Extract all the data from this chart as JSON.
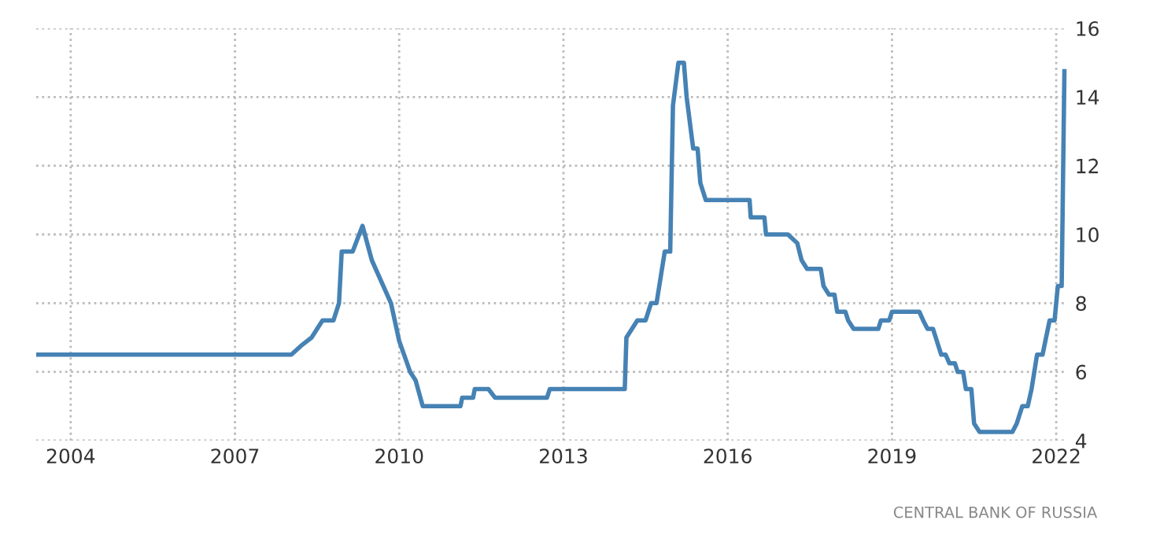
{
  "chart_data": {
    "type": "line",
    "annotations": [
      "CENTRAL BANK OF RUSSIA"
    ],
    "x": [
      2003.37,
      2008.03,
      2008.2,
      2008.4,
      2008.6,
      2008.8,
      2008.9,
      2008.95,
      2009.15,
      2009.33,
      2009.5,
      2009.85,
      2010.0,
      2010.2,
      2010.3,
      2010.43,
      2011.12,
      2011.15,
      2011.35,
      2011.38,
      2011.63,
      2011.75,
      2012.7,
      2012.75,
      2014.12,
      2014.15,
      2014.35,
      2014.5,
      2014.6,
      2014.7,
      2014.85,
      2014.95,
      2015.0,
      2015.1,
      2015.2,
      2015.25,
      2015.37,
      2015.45,
      2015.5,
      2015.6,
      2016.4,
      2016.42,
      2016.67,
      2016.7,
      2017.1,
      2017.27,
      2017.35,
      2017.45,
      2017.7,
      2017.75,
      2017.85,
      2017.95,
      2018.0,
      2018.15,
      2018.2,
      2018.3,
      2018.75,
      2018.8,
      2018.95,
      2019.0,
      2019.5,
      2019.57,
      2019.65,
      2019.75,
      2019.8,
      2019.9,
      2019.98,
      2020.05,
      2020.15,
      2020.2,
      2020.3,
      2020.35,
      2020.45,
      2020.5,
      2020.6,
      2021.2,
      2021.28,
      2021.38,
      2021.48,
      2021.55,
      2021.65,
      2021.75,
      2021.88,
      2021.97,
      2022.03,
      2022.1,
      2022.15
    ],
    "values": [
      6.5,
      6.5,
      6.75,
      7.0,
      7.5,
      7.5,
      8.0,
      9.5,
      9.5,
      10.25,
      9.25,
      8.0,
      6.9,
      6.0,
      5.75,
      5.0,
      5.0,
      5.25,
      5.25,
      5.5,
      5.5,
      5.25,
      5.25,
      5.5,
      5.5,
      7.0,
      7.5,
      7.5,
      8.0,
      8.0,
      9.5,
      9.5,
      13.75,
      15.0,
      15.0,
      14.0,
      12.5,
      12.5,
      11.5,
      11.0,
      11.0,
      10.5,
      10.5,
      10.0,
      10.0,
      9.75,
      9.25,
      9.0,
      9.0,
      8.5,
      8.25,
      8.25,
      7.75,
      7.75,
      7.5,
      7.25,
      7.25,
      7.5,
      7.5,
      7.75,
      7.75,
      7.5,
      7.25,
      7.25,
      7.0,
      6.5,
      6.5,
      6.25,
      6.25,
      6.0,
      6.0,
      5.5,
      5.5,
      4.5,
      4.25,
      4.25,
      4.5,
      5.0,
      5.0,
      5.5,
      6.5,
      6.5,
      7.5,
      7.5,
      8.5,
      8.5,
      14.75
    ],
    "color": "#4682b4",
    "xlim": [
      2003.37,
      2022.2
    ],
    "xticks": [
      2004,
      2007,
      2010,
      2013,
      2016,
      2019,
      2022
    ],
    "ylim": [
      4,
      16
    ],
    "yticks": [
      4,
      6,
      8,
      10,
      12,
      14,
      16
    ],
    "grid": true,
    "legend": false
  }
}
